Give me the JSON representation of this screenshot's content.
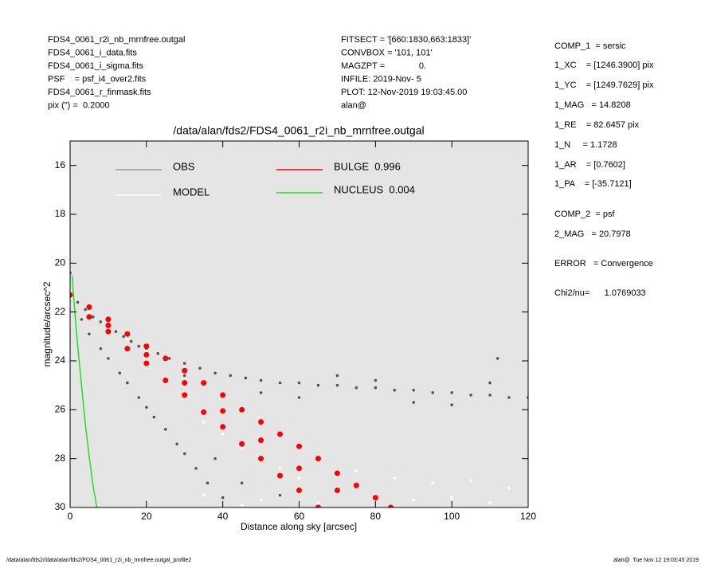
{
  "chart_data": {
    "type": "scatter",
    "title": "/data/alan/fds2/FDS4_0061_r2i_nb_mrnfree.outgal",
    "x_label": "Distance along sky [arcsec]",
    "y_label": "magnitude/arcsec^2",
    "xlim": [
      0,
      120
    ],
    "ylim": [
      30,
      15
    ],
    "xticks": [
      0,
      20,
      40,
      60,
      80,
      100,
      120
    ],
    "yticks": [
      16,
      18,
      20,
      22,
      24,
      26,
      28,
      30
    ],
    "background": "#e5e5e5",
    "header_left": [
      "FDS4_0061_r2i_nb_mrnfree.outgal",
      "FDS4_0061_i_data.fits",
      "FDS4_0061_i_sigma.fits",
      "PSF    = psf_i4_over2.fits",
      "FDS4_0061_r_finmask.fits",
      "pix (\") =  0.2000"
    ],
    "header_center": [
      "FITSECT = '[660:1830,663:1833]'",
      "CONVBOX = '101, 101'",
      "MAGZPT =              0.",
      "INFILE: 2019-Nov- 5",
      "PLOT: 12-Nov-2019 19:03:45.00",
      "alan@"
    ],
    "header_right": [
      "COMP_1  = sersic",
      "1_XC    = [1246.3900] pix",
      "1_YC    = [1249.7629] pix",
      "1_MAG   = 14.8208",
      "1_RE    = 82.6457 pix",
      "1_N     = 1.1728",
      "1_AR    = [0.7602]",
      "1_PA    = [-35.7121]",
      "COMP_2  = psf",
      "2_MAG   = 20.7978",
      "ERROR   = Convergence",
      "Chi2/nu=      1.0769033"
    ],
    "footer_left": "/data/alan/fds2//data/alan/fds2/FDS4_0061_r2i_nb_mrnfree.outgal_profile2",
    "footer_right": "alan@  Tue Nov 12 19:03:45 2019",
    "series": [
      {
        "name": "OBS",
        "color": "#555555",
        "mode": "markers",
        "x": [
          0,
          2,
          4,
          6,
          8,
          10,
          12,
          14,
          16,
          18,
          20,
          23,
          26,
          30,
          34,
          38,
          42,
          46,
          50,
          55,
          60,
          65,
          70,
          75,
          80,
          85,
          90,
          95,
          100,
          105,
          110,
          115,
          120,
          30,
          50,
          70,
          90,
          110,
          60,
          80,
          100,
          112,
          3,
          5,
          8,
          10,
          13,
          15,
          18,
          20,
          22,
          25,
          28,
          30,
          33,
          36,
          40,
          38,
          45,
          55,
          0
        ],
        "y": [
          21.3,
          21.6,
          21.9,
          22.2,
          22.4,
          22.6,
          22.8,
          23.0,
          23.2,
          23.4,
          23.5,
          23.7,
          23.9,
          24.1,
          24.3,
          24.5,
          24.6,
          24.7,
          24.8,
          24.9,
          24.9,
          25.0,
          25.0,
          25.1,
          25.1,
          25.2,
          25.2,
          25.3,
          25.3,
          25.4,
          25.4,
          25.5,
          25.5,
          24.6,
          25.3,
          24.6,
          25.7,
          24.9,
          25.5,
          24.8,
          25.8,
          23.9,
          22.3,
          22.9,
          23.5,
          23.9,
          24.5,
          24.9,
          25.5,
          25.9,
          26.3,
          26.8,
          27.4,
          27.8,
          28.4,
          29.0,
          29.6,
          28.0,
          29.0,
          29.5,
          20.4
        ]
      },
      {
        "name": "MODEL",
        "color": "#ffffff",
        "mode": "markers",
        "x": [
          0,
          5,
          10,
          15,
          20,
          25,
          30,
          35,
          40,
          45,
          50,
          55,
          60,
          70,
          80,
          90,
          100,
          110,
          120,
          50,
          65,
          75,
          85,
          95,
          105,
          115,
          35,
          45
        ],
        "y": [
          21.4,
          22.0,
          22.6,
          23.1,
          23.6,
          24.0,
          24.3,
          26.5,
          27.0,
          27.6,
          28.0,
          28.4,
          28.8,
          29.2,
          29.5,
          29.7,
          29.6,
          29.8,
          29.9,
          29.7,
          29.8,
          28.5,
          28.8,
          29.0,
          28.9,
          29.2,
          29.5,
          29.9
        ]
      },
      {
        "name": "BULGE  0.996",
        "color": "#ff0000",
        "mode": "markers",
        "x": [
          0,
          5,
          10,
          15,
          20,
          25,
          30,
          35,
          40,
          45,
          50,
          55,
          60,
          65,
          70,
          75,
          80,
          84,
          5,
          10,
          15,
          20,
          25,
          30,
          35,
          40,
          45,
          50,
          55,
          60,
          65,
          10,
          20,
          30,
          40,
          50,
          60,
          70
        ],
        "y": [
          21.3,
          21.8,
          22.3,
          22.9,
          23.4,
          23.9,
          24.4,
          24.9,
          25.4,
          26.0,
          26.5,
          27.0,
          27.5,
          28.0,
          28.6,
          29.1,
          29.6,
          30.0,
          22.2,
          22.8,
          23.5,
          24.1,
          24.8,
          25.4,
          26.1,
          26.7,
          27.4,
          28.0,
          28.7,
          29.3,
          30.0,
          22.55,
          23.75,
          24.9,
          26.05,
          27.25,
          28.4,
          29.3
        ]
      },
      {
        "name": "NUCLEUS  0.004",
        "color": "#22dd22",
        "mode": "line",
        "x": [
          0.5,
          1,
          1.5,
          2,
          3,
          4,
          5,
          6,
          7
        ],
        "y": [
          20.5,
          21.5,
          22.5,
          23.4,
          25.0,
          26.6,
          27.9,
          29.1,
          30.0
        ]
      }
    ]
  }
}
